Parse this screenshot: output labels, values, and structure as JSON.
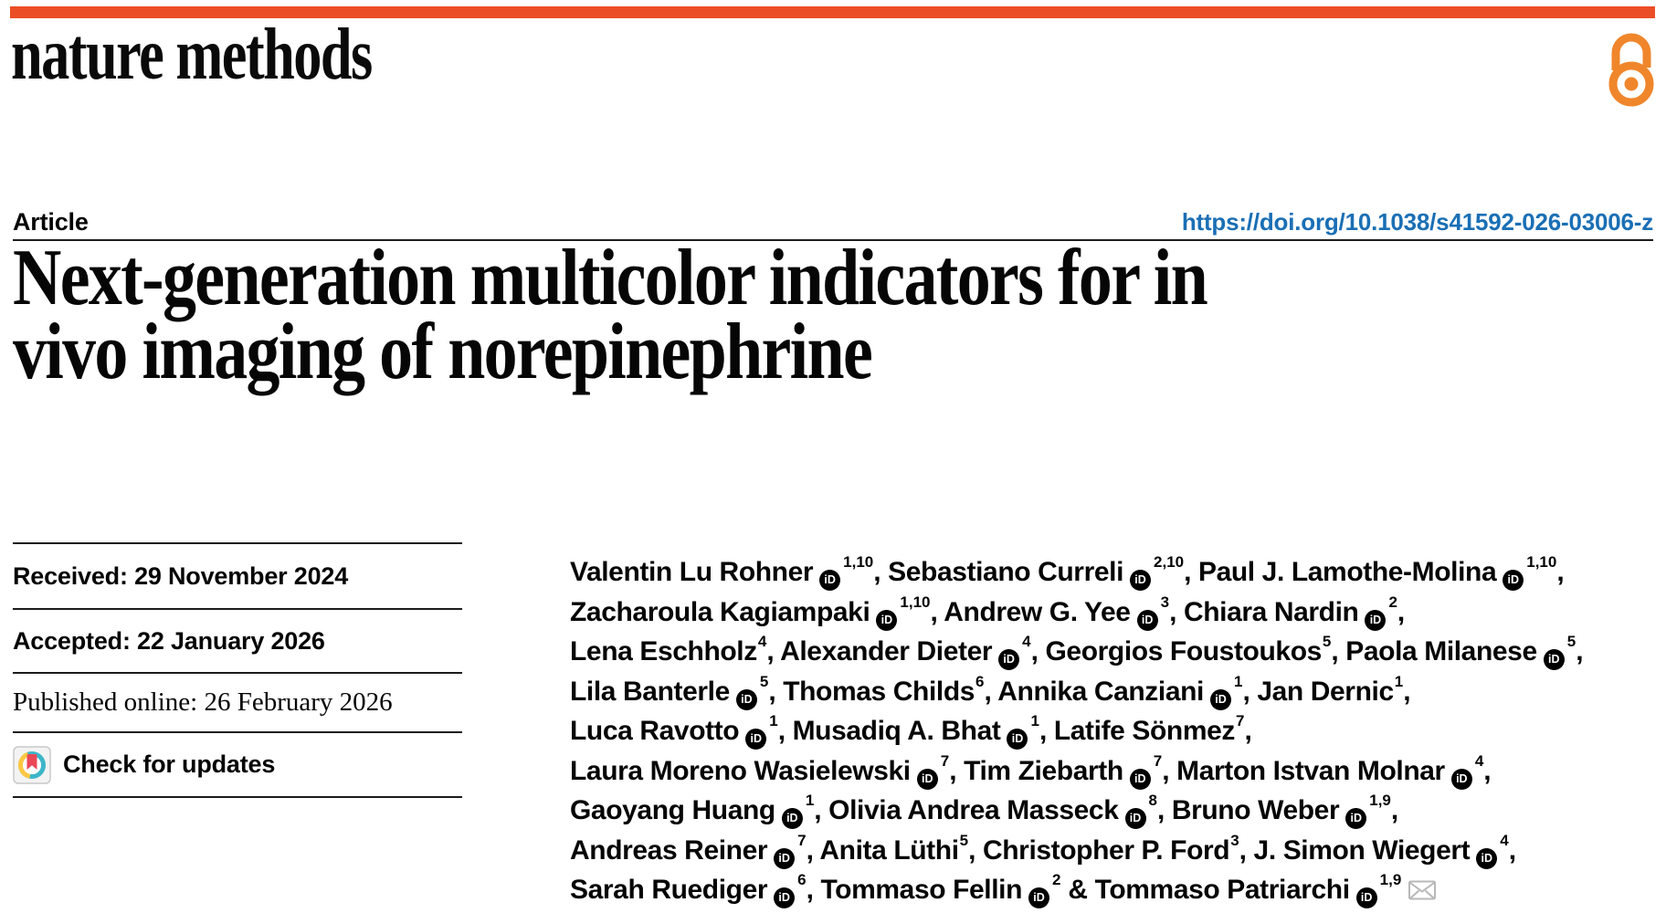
{
  "colors": {
    "accent_bar": "#EB4E26",
    "open_access": "#F0862B",
    "link": "#1A6FB5",
    "crossmark_teal": "#3CB6C9",
    "crossmark_yellow": "#FFC843",
    "crossmark_red": "#EA4756",
    "rule": "#1C1C1C"
  },
  "masthead": {
    "journal_name": "nature methods",
    "open_access_icon": "open-access-lock-icon"
  },
  "article_header": {
    "kicker": "Article",
    "doi_url": "https://doi.org/10.1038/s41592-026-03006-z"
  },
  "title": {
    "line1": "Next-generation multicolor indicators for in",
    "line2": "vivo imaging of norepinephrine"
  },
  "metadata_panel": {
    "rows": [
      {
        "label": "Received:",
        "value": "29 November 2024"
      },
      {
        "label": "Accepted:",
        "value": "22 January 2026"
      },
      {
        "label": "Published online:",
        "value": "26 February 2026"
      }
    ],
    "check_for_updates": {
      "label": "Check for updates",
      "icon": "crossmark-icon"
    }
  },
  "authors": {
    "orcid_glyph": "iD",
    "lines": [
      [
        {
          "name": "Valentin Lu Rohner",
          "orcid": true,
          "sup": "1,10",
          "sep": ", "
        },
        {
          "name": "Sebastiano Curreli",
          "orcid": true,
          "sup": "2,10",
          "sep": ", "
        },
        {
          "name": "Paul J. Lamothe-Molina",
          "orcid": true,
          "sup": "1,10",
          "sep": ","
        }
      ],
      [
        {
          "name": "Zacharoula Kagiampaki",
          "orcid": true,
          "sup": "1,10",
          "sep": ", "
        },
        {
          "name": "Andrew G. Yee",
          "orcid": true,
          "sup": "3",
          "sep": ", "
        },
        {
          "name": "Chiara Nardin",
          "orcid": true,
          "sup": "2",
          "sep": ","
        }
      ],
      [
        {
          "name": "Lena Eschholz",
          "orcid": false,
          "sup": "4",
          "sep": ", "
        },
        {
          "name": "Alexander Dieter",
          "orcid": true,
          "sup": "4",
          "sep": ", "
        },
        {
          "name": "Georgios Foustoukos",
          "orcid": false,
          "sup": "5",
          "sep": ", "
        },
        {
          "name": "Paola Milanese",
          "orcid": true,
          "sup": "5",
          "sep": ","
        }
      ],
      [
        {
          "name": "Lila Banterle",
          "orcid": true,
          "sup": "5",
          "sep": ", "
        },
        {
          "name": "Thomas Childs",
          "orcid": false,
          "sup": "6",
          "sep": ", "
        },
        {
          "name": "Annika Canziani",
          "orcid": true,
          "sup": "1",
          "sep": ", "
        },
        {
          "name": "Jan Dernic",
          "orcid": false,
          "sup": "1",
          "sep": ","
        }
      ],
      [
        {
          "name": "Luca Ravotto",
          "orcid": true,
          "sup": "1",
          "sep": ", "
        },
        {
          "name": "Musadiq A. Bhat",
          "orcid": true,
          "sup": "1",
          "sep": ", "
        },
        {
          "name": "Latife Sönmez",
          "orcid": false,
          "sup": "7",
          "sep": ","
        }
      ],
      [
        {
          "name": "Laura Moreno Wasielewski",
          "orcid": true,
          "sup": "7",
          "sep": ", "
        },
        {
          "name": "Tim Ziebarth",
          "orcid": true,
          "sup": "7",
          "sep": ", "
        },
        {
          "name": "Marton Istvan Molnar",
          "orcid": true,
          "sup": "4",
          "sep": ","
        }
      ],
      [
        {
          "name": "Gaoyang Huang",
          "orcid": true,
          "sup": "1",
          "sep": ", "
        },
        {
          "name": "Olivia Andrea Masseck",
          "orcid": true,
          "sup": "8",
          "sep": ", "
        },
        {
          "name": "Bruno Weber",
          "orcid": true,
          "sup": "1,9",
          "sep": ","
        }
      ],
      [
        {
          "name": "Andreas Reiner",
          "orcid": true,
          "sup": "7",
          "sep": ", "
        },
        {
          "name": "Anita Lüthi",
          "orcid": false,
          "sup": "5",
          "sep": ", "
        },
        {
          "name": "Christopher P. Ford",
          "orcid": false,
          "sup": "3",
          "sep": ", "
        },
        {
          "name": "J. Simon Wiegert",
          "orcid": true,
          "sup": "4",
          "sep": ","
        }
      ],
      [
        {
          "name": "Sarah Ruediger",
          "orcid": true,
          "sup": "6",
          "sep": ", "
        },
        {
          "name": "Tommaso Fellin",
          "orcid": true,
          "sup": "2",
          "sep": " & "
        },
        {
          "name": "Tommaso Patriarchi",
          "orcid": true,
          "sup": "1,9",
          "sep": "",
          "email": true
        }
      ]
    ]
  }
}
